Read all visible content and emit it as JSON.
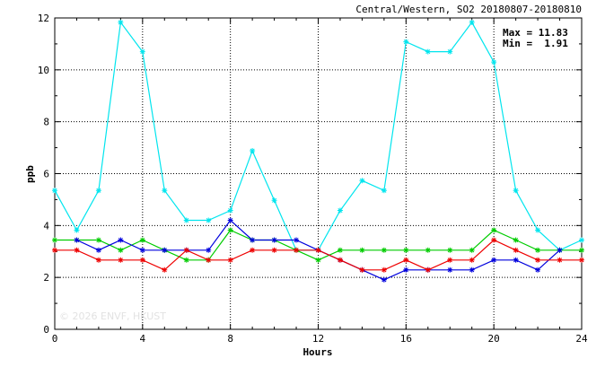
{
  "chart_data": {
    "type": "line",
    "title": "Central/Western, SO2 20180807-20180810",
    "xlabel": "Hours",
    "ylabel": "ppb",
    "xlim": [
      0,
      24
    ],
    "ylim": [
      0,
      12
    ],
    "xticks": [
      0,
      4,
      8,
      12,
      16,
      20,
      24
    ],
    "yticks": [
      0,
      2,
      4,
      6,
      8,
      10,
      12
    ],
    "grid": true,
    "stats": {
      "max_text": "Max = 11.83",
      "min_text": "Min =  1.91"
    },
    "watermark": "© 2026  ENVF, HKUST",
    "x": [
      0,
      1,
      2,
      3,
      4,
      5,
      6,
      7,
      8,
      9,
      10,
      11,
      12,
      13,
      14,
      15,
      16,
      17,
      18,
      19,
      20,
      21,
      22,
      23,
      24
    ],
    "series": [
      {
        "color": "#00e5ee",
        "values": [
          5.35,
          3.82,
          5.35,
          11.83,
          10.7,
          5.35,
          4.2,
          4.2,
          4.58,
          6.88,
          4.97,
          3.05,
          3.05,
          4.58,
          5.73,
          5.35,
          11.08,
          10.7,
          10.7,
          11.83,
          10.3,
          5.35,
          3.82,
          3.05,
          3.44
        ]
      },
      {
        "color": "#00cc00",
        "values": [
          3.44,
          3.44,
          3.44,
          3.05,
          3.44,
          3.05,
          2.67,
          2.67,
          3.82,
          3.44,
          3.44,
          3.05,
          2.67,
          3.05,
          3.05,
          3.05,
          3.05,
          3.05,
          3.05,
          3.05,
          3.82,
          3.44,
          3.05,
          3.05,
          3.05
        ]
      },
      {
        "color": "#0000dd",
        "values": [
          null,
          3.44,
          3.05,
          3.44,
          3.05,
          3.05,
          3.05,
          3.05,
          4.2,
          3.44,
          3.44,
          3.44,
          3.05,
          2.67,
          2.29,
          1.91,
          2.29,
          2.29,
          2.29,
          2.29,
          2.67,
          2.67,
          2.29,
          3.05,
          null
        ]
      },
      {
        "color": "#ee0000",
        "values": [
          3.05,
          3.05,
          2.67,
          2.67,
          2.67,
          2.29,
          3.05,
          2.67,
          2.67,
          3.05,
          3.05,
          3.05,
          3.05,
          2.67,
          2.29,
          2.29,
          2.67,
          2.29,
          2.67,
          2.67,
          3.44,
          3.05,
          2.67,
          2.67,
          2.67
        ]
      }
    ]
  }
}
